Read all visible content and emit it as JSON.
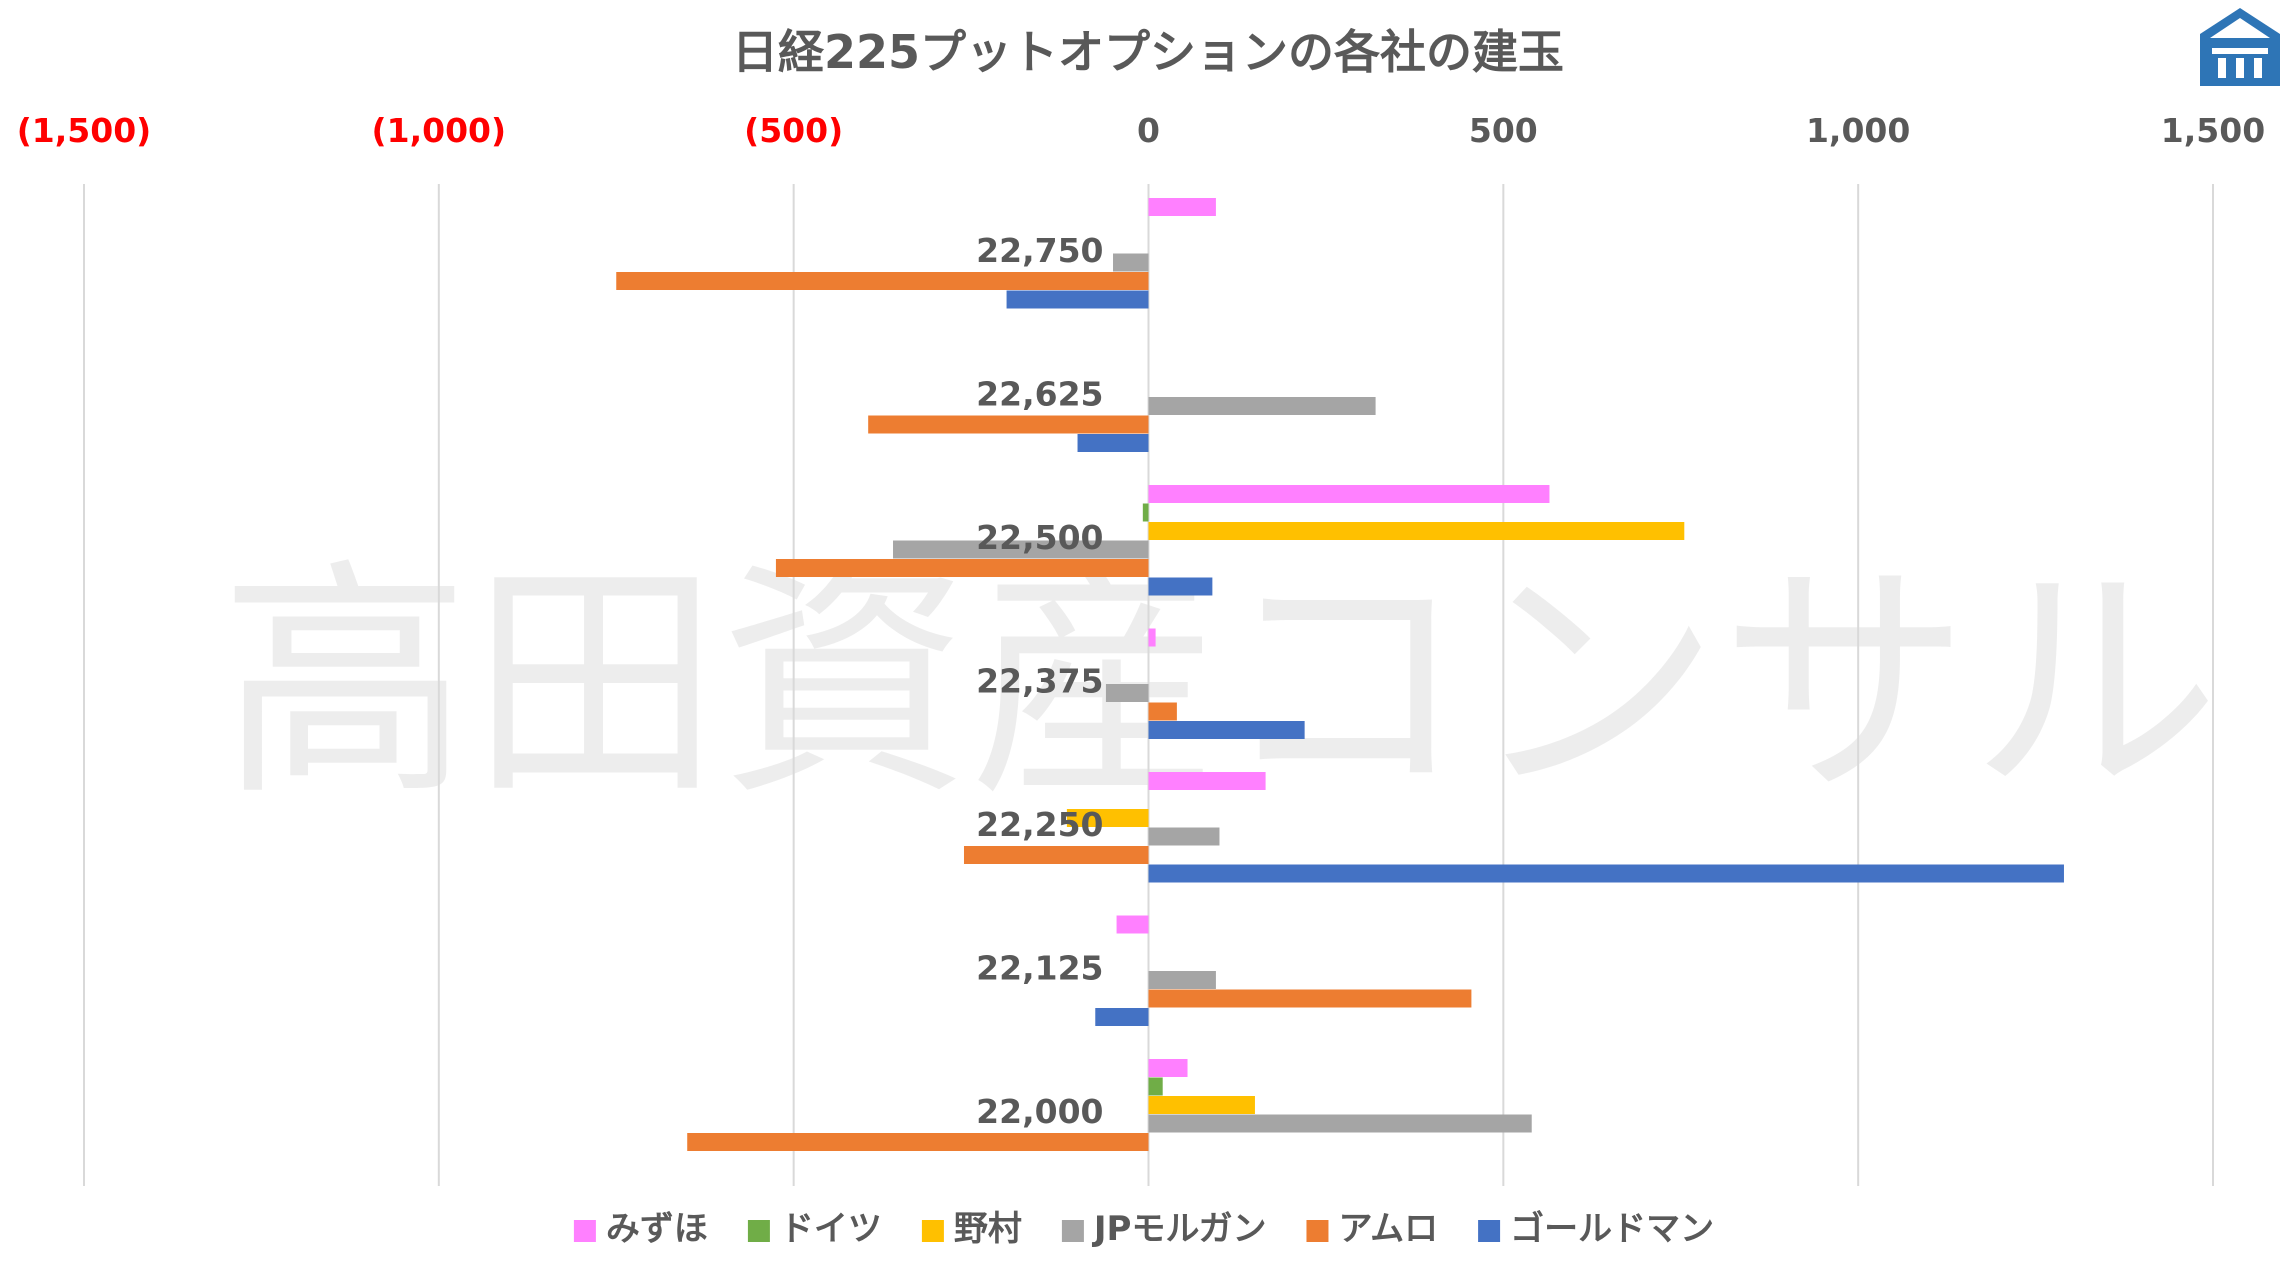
{
  "watermark": "高田資産コンサル",
  "logo": {
    "icon": "bank-building-icon",
    "color": "#2e75b6"
  },
  "chart_data": {
    "type": "bar",
    "orientation": "horizontal",
    "title": "日経225プットオプションの各社の建玉",
    "xlim": [
      -1500,
      1500
    ],
    "x_ticks": [
      -1500,
      -1000,
      -500,
      0,
      500,
      1000,
      1500
    ],
    "x_tick_labels": [
      "(1,500)",
      "(1,000)",
      "(500)",
      "0",
      "500",
      "1,000",
      "1,500"
    ],
    "negative_tick_color": "#ff0000",
    "positive_tick_color": "#595959",
    "gridlines": true,
    "legend_position": "bottom",
    "categories": [
      "22,750",
      "22,625",
      "22,500",
      "22,375",
      "22,250",
      "22,125",
      "22,000"
    ],
    "series": [
      {
        "name": "みずほ",
        "color": "#ff80ff",
        "values": [
          95,
          0,
          565,
          10,
          165,
          -45,
          55
        ]
      },
      {
        "name": "ドイツ",
        "color": "#70ad47",
        "values": [
          0,
          0,
          -8,
          0,
          0,
          0,
          20
        ]
      },
      {
        "name": "野村",
        "color": "#ffc000",
        "values": [
          0,
          0,
          755,
          0,
          -115,
          0,
          150
        ]
      },
      {
        "name": "JPモルガン",
        "color": "#a5a5a5",
        "values": [
          -50,
          320,
          -360,
          -60,
          100,
          95,
          540
        ]
      },
      {
        "name": "アムロ",
        "color": "#ed7d31",
        "values": [
          -750,
          -395,
          -525,
          40,
          -260,
          455,
          -650
        ]
      },
      {
        "name": "ゴールドマン",
        "color": "#4472c4",
        "values": [
          -200,
          -100,
          90,
          220,
          1290,
          -75,
          0
        ]
      }
    ]
  }
}
